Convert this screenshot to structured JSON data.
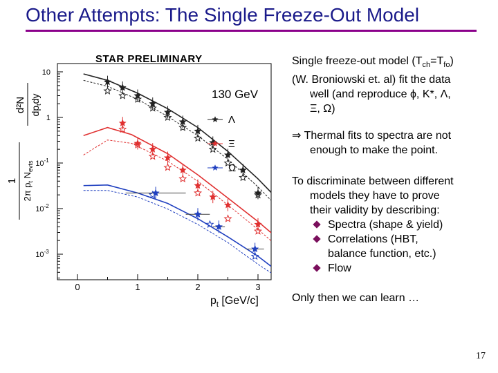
{
  "slide": {
    "title": "Other Attempts: The Single Freeze-Out Model",
    "page_number": "17",
    "colors": {
      "title": "#1a1a8a",
      "rule": "#8b008b",
      "bullet": "#7a0f5c"
    }
  },
  "text": {
    "p1_a": "Single freeze-out model (T",
    "p1_sub1": "ch",
    "p1_b": "=T",
    "p1_sub2": "fo",
    "p1_c": ")",
    "p1_line2": "(W. Broniowski et. al) fit the data",
    "p1_line3": "well (and reproduce ϕ, K*, Λ,",
    "p1_line4": "Ξ, Ω)",
    "p2_line1": "⇒ Thermal fits to spectra are not",
    "p2_line2": "enough to make the point.",
    "p3_line1": "To discriminate between different",
    "p3_line2": "models they have to prove",
    "p3_line3": "their validity by describing:",
    "bullets": [
      "Spectra (shape & yield)",
      "Correlations (HBT,",
      "Flow"
    ],
    "bullet2_cont": "balance function, etc.)",
    "p4": "Only then we can learn …"
  },
  "chart_data": {
    "type": "scatter",
    "title": "STAR PRELIMINARY",
    "annotation": "130 GeV",
    "xlabel": "p",
    "xlabel_sub": "t",
    "xlabel_unit": " [GeV/c]",
    "ylabel_num": "d²N",
    "ylabel_den": "dp",
    "ylabel_den_sub": "t",
    "ylabel_den_tail": "dy",
    "ylabel_pre_num": "1",
    "ylabel_pre_den": "2π p",
    "ylabel_pre_den_sub": "t",
    "ylabel_pre_den_tail": " N",
    "ylabel_pre_den_sub2": "evts",
    "xlim": [
      0,
      3.5
    ],
    "ylim": [
      0.0003,
      10
    ],
    "y_scale": "log",
    "x_ticks": [
      "0",
      "1",
      "2",
      "3"
    ],
    "x_tick_values": [
      0,
      1,
      2,
      3
    ],
    "y_ticks": [
      "10",
      "1",
      "10-1",
      "10-2",
      "10-3"
    ],
    "y_tick_values": [
      10,
      1,
      0.1,
      0.01,
      0.001
    ],
    "legend_placement": "right",
    "series": [
      {
        "name": "Λ",
        "color": "#222222",
        "marker": "star",
        "points": [
          [
            0.5,
            6.0
          ],
          [
            0.75,
            4.5
          ],
          [
            1.0,
            3.0
          ],
          [
            1.25,
            2.0
          ],
          [
            1.5,
            1.3
          ],
          [
            1.75,
            0.8
          ],
          [
            2.0,
            0.5
          ],
          [
            2.25,
            0.28
          ],
          [
            2.5,
            0.15
          ],
          [
            2.75,
            0.07
          ],
          [
            3.0,
            0.022
          ]
        ],
        "open_points": [
          [
            0.5,
            3.8
          ],
          [
            0.75,
            3.0
          ],
          [
            1.0,
            2.5
          ],
          [
            1.25,
            1.6
          ],
          [
            1.5,
            1.0
          ],
          [
            1.75,
            0.6
          ],
          [
            2.0,
            0.35
          ],
          [
            2.25,
            0.2
          ],
          [
            2.5,
            0.1
          ],
          [
            2.75,
            0.048
          ],
          [
            3.0,
            0.02
          ]
        ],
        "fit": [
          [
            0.1,
            9.0
          ],
          [
            0.5,
            6.5
          ],
          [
            1.0,
            3.4
          ],
          [
            1.5,
            1.55
          ],
          [
            2.0,
            0.6
          ],
          [
            2.5,
            0.18
          ],
          [
            3.0,
            0.045
          ],
          [
            3.35,
            0.015
          ]
        ],
        "fit_dotted": [
          [
            0.1,
            6.5
          ],
          [
            0.5,
            4.8
          ],
          [
            1.0,
            2.5
          ],
          [
            1.5,
            1.05
          ],
          [
            2.0,
            0.4
          ],
          [
            2.5,
            0.12
          ],
          [
            3.0,
            0.03
          ],
          [
            3.35,
            0.01
          ]
        ]
      },
      {
        "name": "Ξ",
        "color": "#e03030",
        "marker": "star",
        "points": [
          [
            0.75,
            0.75
          ],
          [
            1.0,
            0.27
          ],
          [
            1.25,
            0.2
          ],
          [
            1.5,
            0.13
          ],
          [
            1.75,
            0.07
          ],
          [
            2.0,
            0.032
          ],
          [
            2.25,
            0.018
          ],
          [
            2.5,
            0.012
          ],
          [
            3.0,
            0.0045
          ]
        ],
        "open_points": [
          [
            0.75,
            0.55
          ],
          [
            1.0,
            0.25
          ],
          [
            1.25,
            0.14
          ],
          [
            1.5,
            0.08
          ],
          [
            1.75,
            0.045
          ],
          [
            2.0,
            0.022
          ],
          [
            2.5,
            0.006
          ],
          [
            3.0,
            0.0032
          ]
        ],
        "fit": [
          [
            0.1,
            0.4
          ],
          [
            0.5,
            0.6
          ],
          [
            0.9,
            0.42
          ],
          [
            1.5,
            0.16
          ],
          [
            2.0,
            0.055
          ],
          [
            2.5,
            0.017
          ],
          [
            3.0,
            0.0052
          ],
          [
            3.35,
            0.0021
          ]
        ],
        "fit_dotted": [
          [
            0.1,
            0.15
          ],
          [
            0.5,
            0.32
          ],
          [
            0.9,
            0.27
          ],
          [
            1.5,
            0.11
          ],
          [
            2.0,
            0.04
          ],
          [
            2.5,
            0.012
          ],
          [
            3.0,
            0.0035
          ],
          [
            3.35,
            0.0014
          ]
        ]
      },
      {
        "name": "Ω",
        "color": "#2040c0",
        "marker": "star",
        "points": [
          [
            1.3,
            0.022
          ],
          [
            2.0,
            0.0075
          ],
          [
            2.35,
            0.004
          ],
          [
            2.95,
            0.0013
          ]
        ],
        "open_points": [
          [
            1.25,
            0.02
          ],
          [
            2.2,
            0.0045
          ],
          [
            2.95,
            0.0009
          ]
        ],
        "x_err": [
          0.5,
          0.2,
          0.1,
          0.15
        ],
        "fit": [
          [
            0.1,
            0.032
          ],
          [
            0.5,
            0.033
          ],
          [
            1.0,
            0.022
          ],
          [
            1.5,
            0.013
          ],
          [
            2.0,
            0.006
          ],
          [
            2.5,
            0.0024
          ],
          [
            3.0,
            0.0009
          ],
          [
            3.35,
            0.0004
          ]
        ],
        "fit_dotted": [
          [
            0.1,
            0.025
          ],
          [
            0.5,
            0.025
          ],
          [
            1.0,
            0.018
          ],
          [
            1.5,
            0.0098
          ],
          [
            2.0,
            0.0045
          ],
          [
            2.5,
            0.0018
          ],
          [
            3.0,
            0.0006
          ],
          [
            3.35,
            0.0003
          ]
        ]
      }
    ]
  }
}
